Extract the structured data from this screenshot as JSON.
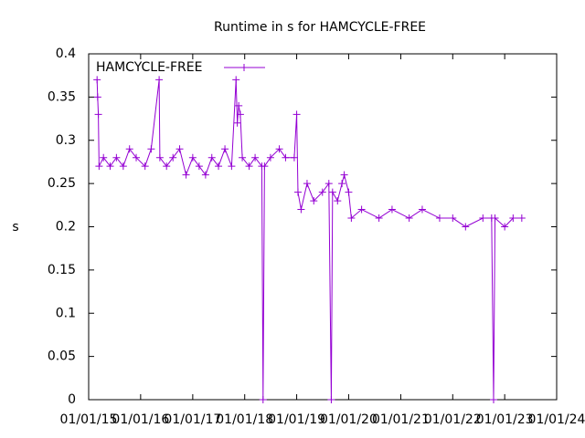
{
  "chart_data": {
    "type": "line",
    "title": "Runtime in s for HAMCYCLE-FREE",
    "y_label": "s",
    "x": [
      "2015-03-01",
      "2015-03-05",
      "2015-03-10",
      "2015-03-15",
      "2015-04-15",
      "2015-06-01",
      "2015-07-15",
      "2015-09-01",
      "2015-10-15",
      "2015-12-01",
      "2016-02-01",
      "2016-03-15",
      "2016-05-10",
      "2016-05-15",
      "2016-07-01",
      "2016-08-15",
      "2016-10-01",
      "2016-11-15",
      "2017-01-01",
      "2017-02-15",
      "2017-04-01",
      "2017-05-15",
      "2017-07-01",
      "2017-08-15",
      "2017-10-01",
      "2017-11-01",
      "2017-11-10",
      "2017-11-20",
      "2017-12-01",
      "2017-12-15",
      "2018-02-01",
      "2018-03-15",
      "2018-05-01",
      "2018-05-10",
      "2018-05-20",
      "2018-07-01",
      "2018-09-01",
      "2018-10-15",
      "2018-12-15",
      "2019-01-01",
      "2019-01-10",
      "2019-02-01",
      "2019-03-15",
      "2019-05-01",
      "2019-07-01",
      "2019-08-15",
      "2019-09-01",
      "2019-09-10",
      "2019-10-15",
      "2019-11-15",
      "2019-12-01",
      "2020-01-01",
      "2020-01-20",
      "2020-04-01",
      "2020-08-01",
      "2020-11-01",
      "2021-03-01",
      "2021-06-01",
      "2021-10-01",
      "2022-01-01",
      "2022-04-01",
      "2022-08-01",
      "2022-10-01",
      "2022-10-15",
      "2022-10-25",
      "2023-01-01",
      "2023-03-01",
      "2023-05-01"
    ],
    "series": [
      {
        "name": "HAMCYCLE-FREE",
        "color": "#9400d3",
        "values": [
          0.37,
          0.35,
          0.33,
          0.27,
          0.28,
          0.27,
          0.28,
          0.27,
          0.29,
          0.28,
          0.27,
          0.29,
          0.37,
          0.28,
          0.27,
          0.28,
          0.29,
          0.26,
          0.28,
          0.27,
          0.26,
          0.28,
          0.27,
          0.29,
          0.27,
          0.37,
          0.32,
          0.34,
          0.33,
          0.28,
          0.27,
          0.28,
          0.27,
          0,
          0.27,
          0.28,
          0.29,
          0.28,
          0.28,
          0.33,
          0.24,
          0.22,
          0.25,
          0.23,
          0.24,
          0.25,
          0,
          0.24,
          0.23,
          0.25,
          0.26,
          0.24,
          0.21,
          0.22,
          0.21,
          0.22,
          0.21,
          0.22,
          0.21,
          0.21,
          0.2,
          0.21,
          0.21,
          0,
          0.21,
          0.2,
          0.21,
          0.21
        ]
      }
    ],
    "xlim": [
      "2015-01-01",
      "2024-01-01"
    ],
    "xticks": [
      {
        "value": "2015-01-01",
        "label": "01/01/15"
      },
      {
        "value": "2016-01-01",
        "label": "01/01/16"
      },
      {
        "value": "2017-01-01",
        "label": "01/01/17"
      },
      {
        "value": "2018-01-01",
        "label": "01/01/18"
      },
      {
        "value": "2019-01-01",
        "label": "01/01/19"
      },
      {
        "value": "2020-01-01",
        "label": "01/01/20"
      },
      {
        "value": "2021-01-01",
        "label": "01/01/21"
      },
      {
        "value": "2022-01-01",
        "label": "01/01/22"
      },
      {
        "value": "2023-01-01",
        "label": "01/01/23"
      },
      {
        "value": "2024-01-01",
        "label": "01/01/24"
      }
    ],
    "ylim": [
      0,
      0.4
    ],
    "yticks": [
      0,
      0.05,
      0.1,
      0.15,
      0.2,
      0.25,
      0.3,
      0.35,
      0.4
    ],
    "legend": "top-left",
    "grid": false
  }
}
